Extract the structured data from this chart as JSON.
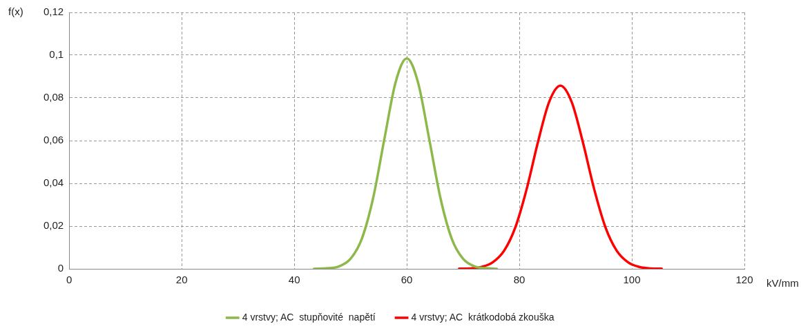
{
  "chart_data": {
    "type": "line",
    "xlabel": "kV/mm",
    "ylabel": "f(x)",
    "xlim": [
      0,
      120
    ],
    "xticks": [
      0,
      20,
      40,
      60,
      80,
      100,
      120
    ],
    "ylim": [
      0,
      0.12
    ],
    "yticks": [
      0,
      {
        "value": 0.02,
        "label": "0,02"
      },
      {
        "value": 0.04,
        "label": "0,04"
      },
      {
        "value": 0.06,
        "label": "0,06"
      },
      {
        "value": 0.08,
        "label": "0,08"
      },
      {
        "value": 0.1,
        "label": "0,1"
      },
      {
        "value": 0.12,
        "label": "0,12"
      }
    ],
    "grid": true,
    "legend": "bottom",
    "marker": "none",
    "line_style": "solid",
    "series": [
      {
        "name": "4 vrstvy; AC  stupňovité  napětí",
        "color": "#8db84a",
        "x": [
          43.5,
          46,
          48,
          50,
          52,
          54,
          56,
          58,
          60,
          62,
          64,
          66,
          68,
          70,
          72,
          74,
          76
        ],
        "values": [
          0,
          0.0003,
          0.0012,
          0.0047,
          0.014,
          0.0329,
          0.0605,
          0.0872,
          0.0985,
          0.0872,
          0.0605,
          0.0329,
          0.014,
          0.0047,
          0.0012,
          0.0003,
          0
        ]
      },
      {
        "name": "4 vrstvy; AC  krátkodobá zkouška",
        "color": "#ff0000",
        "x": [
          69.3,
          71.3,
          73.3,
          75.3,
          77.3,
          79.3,
          81.3,
          83.3,
          85.3,
          87.3,
          89.3,
          91.3,
          93.3,
          95.3,
          97.3,
          99.3,
          101.3,
          103.3,
          105.3
        ],
        "values": [
          0.0001,
          0.0002,
          0.0009,
          0.0031,
          0.0085,
          0.0195,
          0.0373,
          0.0592,
          0.0781,
          0.0857,
          0.0781,
          0.0592,
          0.0373,
          0.0195,
          0.0085,
          0.0031,
          0.0009,
          0.0002,
          0.0001
        ]
      }
    ]
  }
}
